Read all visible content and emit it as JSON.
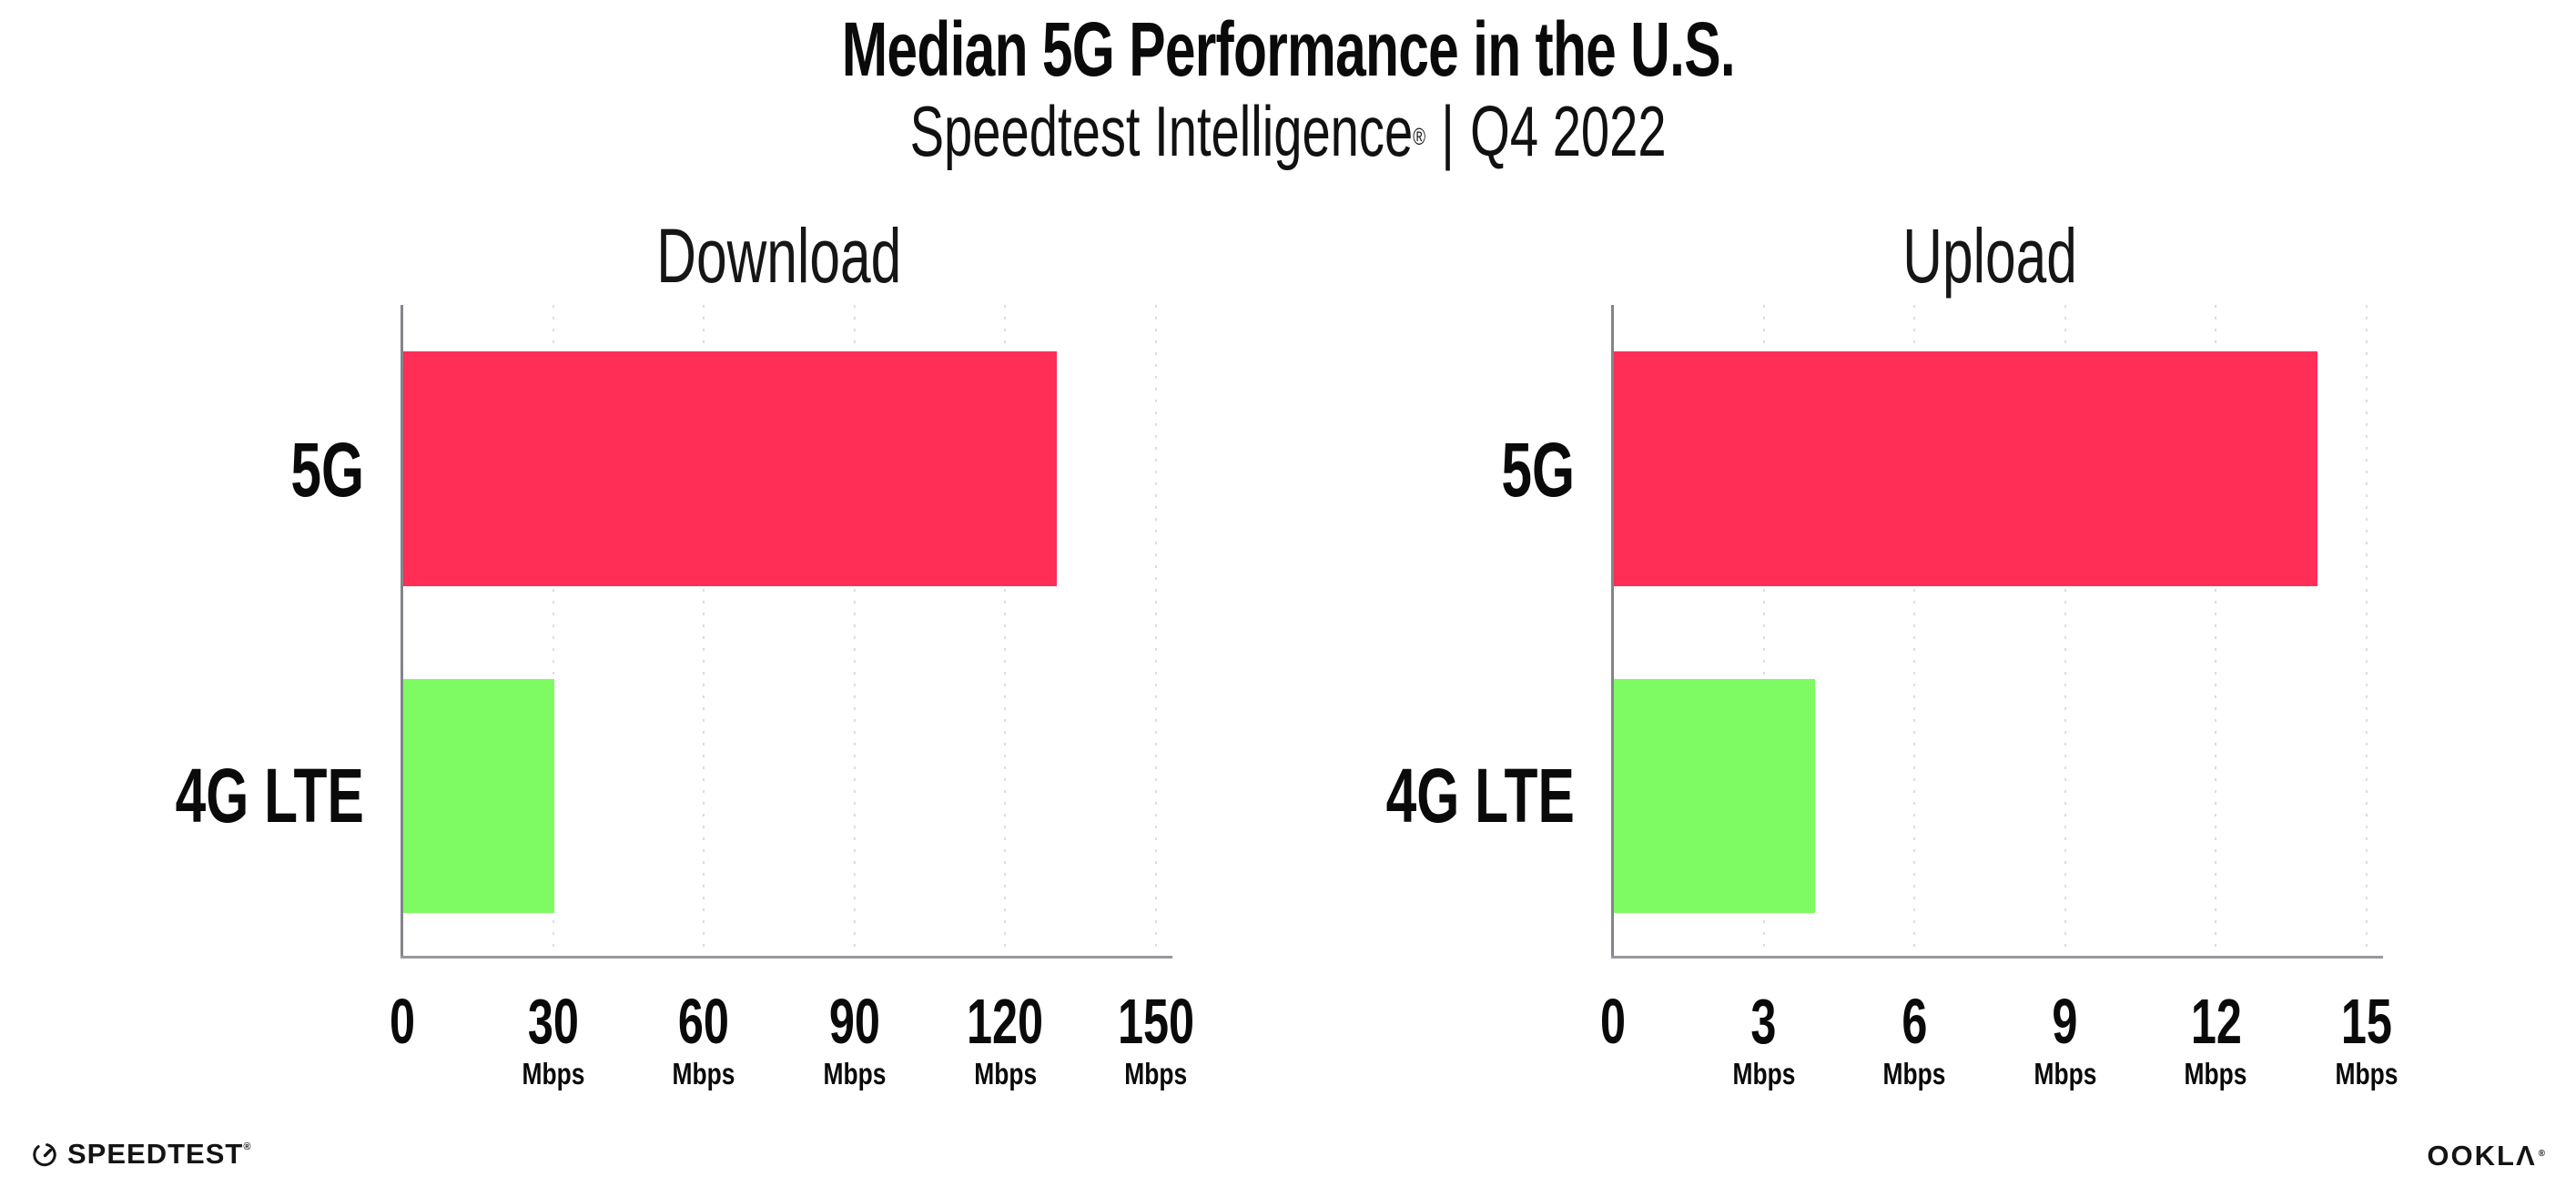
{
  "header": {
    "title": "Median 5G Performance in the U.S.",
    "subtitle_brand": "Speedtest Intelligence",
    "subtitle_reg": "®",
    "subtitle_sep": "|",
    "subtitle_period": "Q4 2022"
  },
  "chart_data": [
    {
      "type": "bar",
      "orientation": "horizontal",
      "title": "Download",
      "categories": [
        "5G",
        "4G LTE"
      ],
      "values": [
        130,
        30
      ],
      "unit": "Mbps",
      "xlim": [
        0,
        150
      ],
      "xticks": [
        0,
        30,
        60,
        90,
        120,
        150
      ],
      "colors": [
        "#FF2E56",
        "#7EFB63"
      ],
      "grid": "vertical-dotted",
      "legend": "none"
    },
    {
      "type": "bar",
      "orientation": "horizontal",
      "title": "Upload",
      "categories": [
        "5G",
        "4G LTE"
      ],
      "values": [
        14,
        4
      ],
      "unit": "Mbps",
      "xlim": [
        0,
        15
      ],
      "xticks": [
        0,
        3,
        6,
        9,
        12,
        15
      ],
      "colors": [
        "#FF2E56",
        "#7EFB63"
      ],
      "grid": "vertical-dotted",
      "legend": "none"
    }
  ],
  "colors": {
    "bar_5g": "#FF2E56",
    "bar_4g_lte": "#7EFB63",
    "axis_line": "#97979E",
    "gridline": "#DCDCE5"
  },
  "footer": {
    "speedtest_label": "SPEEDTEST",
    "speedtest_reg": "®",
    "ookla_label": "OOKLΛ",
    "ookla_reg": "®"
  }
}
